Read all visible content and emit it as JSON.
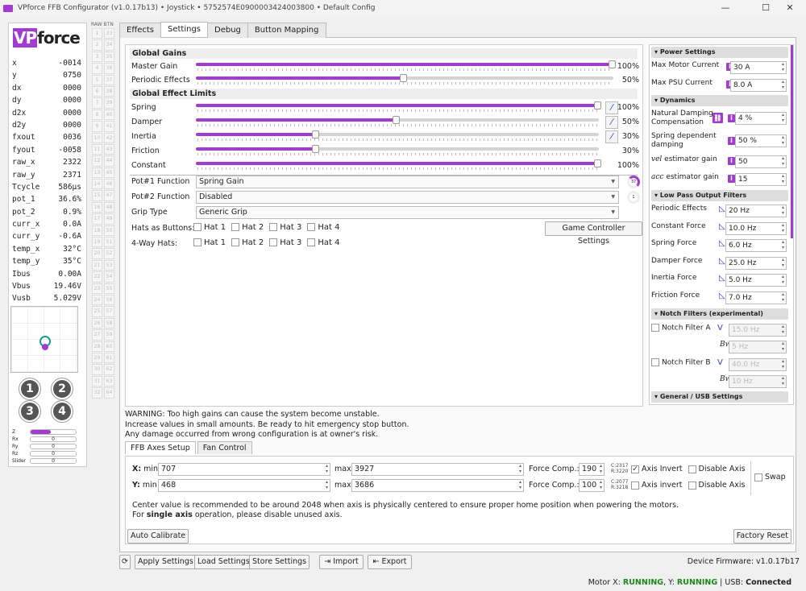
{
  "window": {
    "title": "VPforce FFB Configurator (v1.0.17b13) • Joystick • 5752574E0900003424003800 • Default Config",
    "brand_logo": "VPforce"
  },
  "telemetry": [
    [
      "x",
      "-0014"
    ],
    [
      "y",
      "0750"
    ],
    [
      "dx",
      "0000"
    ],
    [
      "dy",
      "0000"
    ],
    [
      "d2x",
      "0000"
    ],
    [
      "d2y",
      "0000"
    ],
    [
      "fxout",
      "0036"
    ],
    [
      "fyout",
      "-0058"
    ],
    [
      "raw_x",
      "2322"
    ],
    [
      "raw_y",
      "2371"
    ],
    [
      "Tcycle",
      "586µs"
    ],
    [
      "pot_1",
      "36.6%"
    ],
    [
      "pot_2",
      "0.9%"
    ],
    [
      "curr_x",
      "0.0A"
    ],
    [
      "curr_y",
      "-0.6A"
    ],
    [
      "temp_x",
      "32°C"
    ],
    [
      "temp_y",
      "35°C"
    ],
    [
      "Ibus",
      "0.00A"
    ],
    [
      "Vbus",
      "19.46V"
    ],
    [
      "Vusb",
      "5.029V"
    ]
  ],
  "hat_buttons": [
    "1",
    "2",
    "3",
    "4"
  ],
  "axes_bars": [
    {
      "label": "Z",
      "value": "",
      "fill": 0.45
    },
    {
      "label": "Rx",
      "value": "0",
      "fill": 0
    },
    {
      "label": "Ry",
      "value": "0",
      "fill": 0
    },
    {
      "label": "Rz",
      "value": "0",
      "fill": 0
    },
    {
      "label": "Slider",
      "value": "0",
      "fill": 0
    }
  ],
  "raw_btn_header": "RAW BTN",
  "tabs": [
    "Effects",
    "Settings",
    "Debug",
    "Button Mapping"
  ],
  "active_tab": "Settings",
  "accent": "#a23bd0",
  "global_gains": {
    "title": "Global Gains",
    "sliders": [
      {
        "label": "Master Gain",
        "value": 100,
        "text": "100%"
      },
      {
        "label": "Periodic Effects",
        "value": 50,
        "text": "50%"
      }
    ]
  },
  "global_limits": {
    "title": "Global Effect Limits",
    "sliders": [
      {
        "label": "Spring",
        "value": 100,
        "text": "100%",
        "curve": true
      },
      {
        "label": "Damper",
        "value": 50,
        "text": "50%",
        "curve": true
      },
      {
        "label": "Inertia",
        "value": 30,
        "text": "30%",
        "curve": true
      },
      {
        "label": "Friction",
        "value": 30,
        "text": "30%",
        "curve": false
      },
      {
        "label": "Constant",
        "value": 100,
        "text": "100%",
        "curve": false
      }
    ]
  },
  "pot1": {
    "label": "Pot#1 Function",
    "value": "Spring Gain",
    "dial": "37"
  },
  "pot2": {
    "label": "Pot#2 Function",
    "value": "Disabled",
    "dial": "1"
  },
  "grip": {
    "label": "Grip Type",
    "value": "Generic Grip"
  },
  "hats_as_buttons": {
    "label": "Hats as Buttons:",
    "items": [
      "Hat 1",
      "Hat 2",
      "Hat 3",
      "Hat 4"
    ]
  },
  "four_way_hats": {
    "label": "4-Way Hats:",
    "items": [
      "Hat 1",
      "Hat 2",
      "Hat 3",
      "Hat 4"
    ]
  },
  "game_controller_settings": "Game Controller Settings",
  "right": {
    "power": {
      "title": "Power Settings",
      "max_motor_label": "Max Motor Current",
      "max_motor": "30 A",
      "max_psu_label": "Max PSU Current",
      "max_psu": "8.0 A"
    },
    "dynamics": {
      "title": "Dynamics",
      "ndc_label1": "Natural Damping",
      "ndc_label2": "Compensation",
      "ndc": "4 %",
      "sdd_label1": "Spring dependent",
      "sdd_label2": "damping",
      "sdd": "50 %",
      "vel_label_i": "vel",
      "vel_label": " estimator gain",
      "vel": "50",
      "acc_label_i": "acc",
      "acc_label": " estimator gain",
      "acc": "15"
    },
    "lowpass": {
      "title": "Low Pass Output Filters",
      "items": [
        [
          "Periodic Effects",
          "20 Hz"
        ],
        [
          "Constant Force",
          "10.0 Hz"
        ],
        [
          "Spring Force",
          "6.0 Hz"
        ],
        [
          "Damper Force",
          "25.0 Hz"
        ],
        [
          "Inertia Force",
          "5.0 Hz"
        ],
        [
          "Friction Force",
          "7.0 Hz"
        ]
      ]
    },
    "notch": {
      "title": "Notch Filters (experimental)",
      "a_label": "Notch Filter A",
      "a_freq": "15.0 Hz",
      "a_bw": "5 Hz",
      "b_label": "Notch Filter B",
      "b_freq": "40.0 Hz",
      "b_bw": "10 Hz",
      "bw_label": "Bw"
    },
    "general": {
      "title": "General / USB Settings"
    }
  },
  "warning": {
    "bold": "WARNING",
    "line1": ": Too high gains can cause the system become unstable.",
    "line2": "Increase values in small amounts. Be ready to hit emergency stop button.",
    "line3": "Any damage occurred from wrong configuration is at owner's risk."
  },
  "bottom_tabs": [
    "FFB Axes Setup",
    "Fan Control"
  ],
  "axes": {
    "x": {
      "label": "X:",
      "min_label": "min",
      "min": "707",
      "max_label": "max",
      "max": "3927",
      "fc_label": "Force Comp.:",
      "fc": "190",
      "c": "C:2317",
      "r": "R:3220",
      "invert_label": "Axis Invert",
      "invert": true,
      "disable_label": "Disable Axis",
      "disable": false
    },
    "y": {
      "label": "Y:",
      "min_label": "min",
      "min": "468",
      "max_label": "max",
      "max": "3686",
      "fc_label": "Force Comp.:",
      "fc": "100",
      "c": "C:2077",
      "r": "R:3218",
      "invert_label": "Axis invert",
      "invert": false,
      "disable_label": "Disable Axis",
      "disable": false
    },
    "swap_label": "Swap",
    "note1": "Center value is recommended to be around 2048 when axis is physically centered to ensure proper home position when powering the motors.",
    "note2_a": "For ",
    "note2_b": "single axis",
    "note2_c": " operation, please disable unused axis.",
    "auto_calibrate": "Auto Calibrate",
    "factory_reset": "Factory Reset"
  },
  "actions": {
    "apply": "Apply Settings",
    "load": "Load Settings",
    "store": "Store Settings",
    "import": "Import",
    "export": "Export"
  },
  "firmware": "Device Firmware:  v1.0.17b17",
  "status": {
    "motor_x": "Motor X: ",
    "x_state": "RUNNING",
    "y_lbl": ", Y: ",
    "y_state": "RUNNING",
    "usb_lbl": " | USB: ",
    "usb": "Connected"
  }
}
